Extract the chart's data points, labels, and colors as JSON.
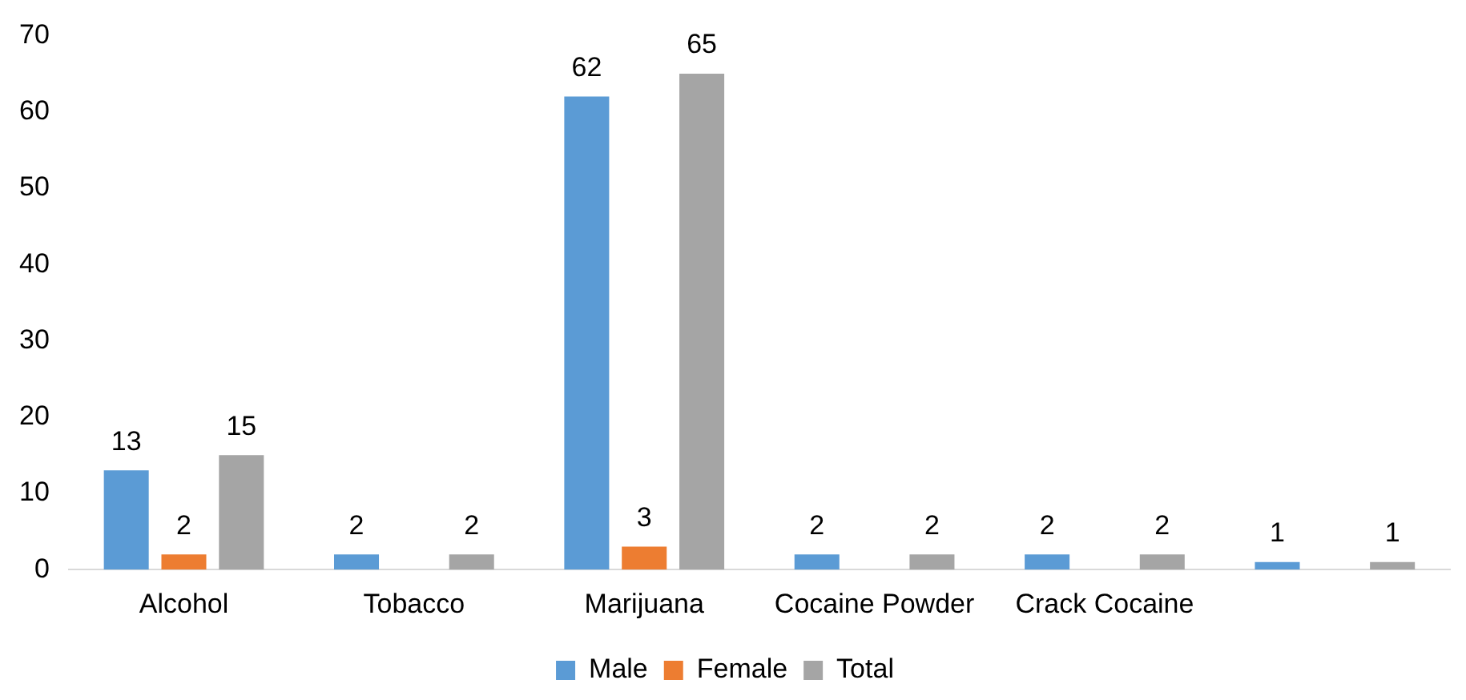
{
  "chart_data": {
    "type": "bar",
    "categories": [
      "Alcohol",
      "Tobacco",
      "Marijuana",
      "Cocaine Powder",
      "Crack Cocaine",
      null
    ],
    "series": [
      {
        "name": "Male",
        "color": "#5b9bd5",
        "values": [
          13,
          2,
          62,
          2,
          2,
          1
        ]
      },
      {
        "name": "Female",
        "color": "#ed7d31",
        "values": [
          2,
          null,
          3,
          null,
          null,
          null
        ]
      },
      {
        "name": "Total",
        "color": "#a5a5a5",
        "values": [
          15,
          2,
          65,
          2,
          2,
          1
        ]
      }
    ],
    "ylim": [
      0,
      70
    ],
    "yticks": [
      0,
      10,
      20,
      30,
      40,
      50,
      60,
      70
    ],
    "grid": false,
    "legend": "bottom",
    "data_labels": true
  }
}
